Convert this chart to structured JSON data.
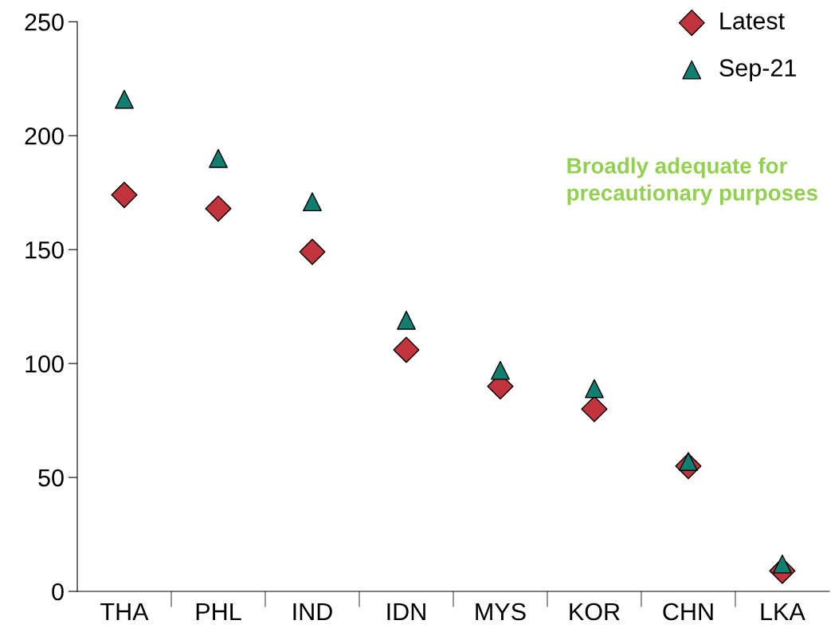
{
  "chart_data": {
    "type": "scatter",
    "categories": [
      "THA",
      "PHL",
      "IND",
      "IDN",
      "MYS",
      "KOR",
      "CHN",
      "LKA"
    ],
    "series": [
      {
        "name": "Latest",
        "color": "#c1343c",
        "marker": "diamond",
        "values": [
          174,
          168,
          149,
          106,
          90,
          80,
          55,
          9
        ]
      },
      {
        "name": "Sep-21",
        "color": "#0f7f72",
        "marker": "triangle",
        "values": [
          216,
          190,
          171,
          119,
          97,
          89,
          57,
          12
        ]
      }
    ],
    "ylim": [
      0,
      250
    ],
    "yticks": [
      0,
      50,
      100,
      150,
      200,
      250
    ],
    "grid": false,
    "legend": "top right",
    "annotations": [
      "Broadly adequate for\nprecautionary purposes"
    ]
  }
}
